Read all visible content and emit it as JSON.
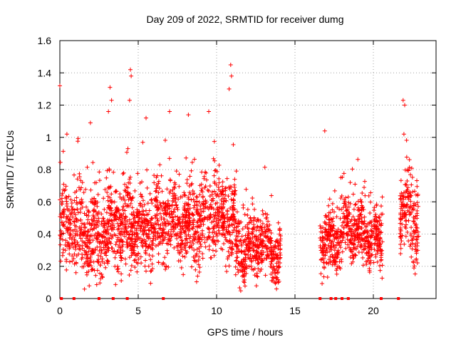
{
  "chart_data": {
    "type": "scatter",
    "title": "Day 209 of 2022, SRMTID for receiver dumg",
    "xlabel": "GPS time / hours",
    "ylabel": "SRMTID / TECUs",
    "xlim": [
      0,
      24
    ],
    "ylim": [
      0,
      1.6
    ],
    "xticks": [
      0,
      5,
      10,
      15,
      20
    ],
    "yticks": [
      0,
      0.2,
      0.4,
      0.6,
      0.8,
      1,
      1.2,
      1.4,
      1.6
    ],
    "xtick_labels": [
      "0",
      "5",
      "10",
      "15",
      "20"
    ],
    "ytick_labels": [
      "0",
      "0.2",
      "0.4",
      "0.6",
      "0.8",
      "1",
      "1.2",
      "1.4",
      "1.6"
    ],
    "grid": true,
    "marker": "+",
    "color": "#ff0000",
    "series": [
      {
        "name": "SRMTID",
        "segments": [
          {
            "start": 0.0,
            "end": 4.5,
            "base": 0.42,
            "spread": 0.22
          },
          {
            "start": 4.5,
            "end": 7.5,
            "base": 0.45,
            "spread": 0.2
          },
          {
            "start": 7.5,
            "end": 11.2,
            "base": 0.5,
            "spread": 0.22
          },
          {
            "start": 11.2,
            "end": 14.1,
            "base": 0.3,
            "spread": 0.15
          },
          {
            "start": 16.6,
            "end": 18.0,
            "base": 0.38,
            "spread": 0.15
          },
          {
            "start": 18.0,
            "end": 20.6,
            "base": 0.4,
            "spread": 0.15
          },
          {
            "start": 21.7,
            "end": 22.9,
            "base": 0.5,
            "spread": 0.2
          }
        ],
        "highlights": [
          {
            "x": 0.0,
            "y": 1.32
          },
          {
            "x": 0.45,
            "y": 1.02
          },
          {
            "x": 1.95,
            "y": 1.09
          },
          {
            "x": 3.1,
            "y": 1.16
          },
          {
            "x": 3.2,
            "y": 1.31
          },
          {
            "x": 3.3,
            "y": 1.23
          },
          {
            "x": 4.5,
            "y": 1.42
          },
          {
            "x": 4.55,
            "y": 1.38
          },
          {
            "x": 4.45,
            "y": 1.23
          },
          {
            "x": 5.5,
            "y": 1.12
          },
          {
            "x": 7.0,
            "y": 1.16
          },
          {
            "x": 8.2,
            "y": 1.14
          },
          {
            "x": 9.5,
            "y": 1.16
          },
          {
            "x": 10.9,
            "y": 1.45
          },
          {
            "x": 10.95,
            "y": 1.38
          },
          {
            "x": 10.8,
            "y": 1.3
          },
          {
            "x": 16.9,
            "y": 1.04
          },
          {
            "x": 21.9,
            "y": 1.23
          },
          {
            "x": 22.0,
            "y": 1.2
          },
          {
            "x": 21.95,
            "y": 1.02
          }
        ],
        "zero_markers": [
          0.1,
          0.9,
          2.5,
          3.4,
          4.3,
          6.6,
          16.6,
          17.3,
          17.6,
          18.0,
          18.4,
          20.5,
          21.6
        ]
      }
    ]
  }
}
